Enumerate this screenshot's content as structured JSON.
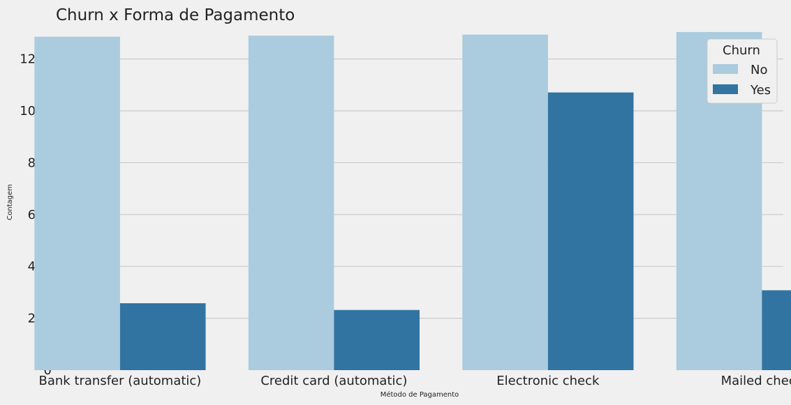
{
  "chart_data": {
    "type": "bar",
    "title": "Churn x Forma de Pagamento",
    "xlabel": "Método de Pagamento",
    "ylabel": "Contagem",
    "categories": [
      "Bank transfer (automatic)",
      "Credit card (automatic)",
      "Electronic check",
      "Mailed check"
    ],
    "series": [
      {
        "name": "No",
        "color": "#abcbde",
        "values": [
          1286,
          1290,
          1294,
          1304
        ]
      },
      {
        "name": "Yes",
        "color": "#3174a2",
        "values": [
          258,
          232,
          1071,
          308
        ]
      }
    ],
    "ylim": [
      0,
      1320
    ],
    "yticks": [
      0,
      200,
      400,
      600,
      800,
      1000,
      1200
    ],
    "grid": true,
    "legend": {
      "title": "Churn",
      "placement": "top-right"
    }
  }
}
